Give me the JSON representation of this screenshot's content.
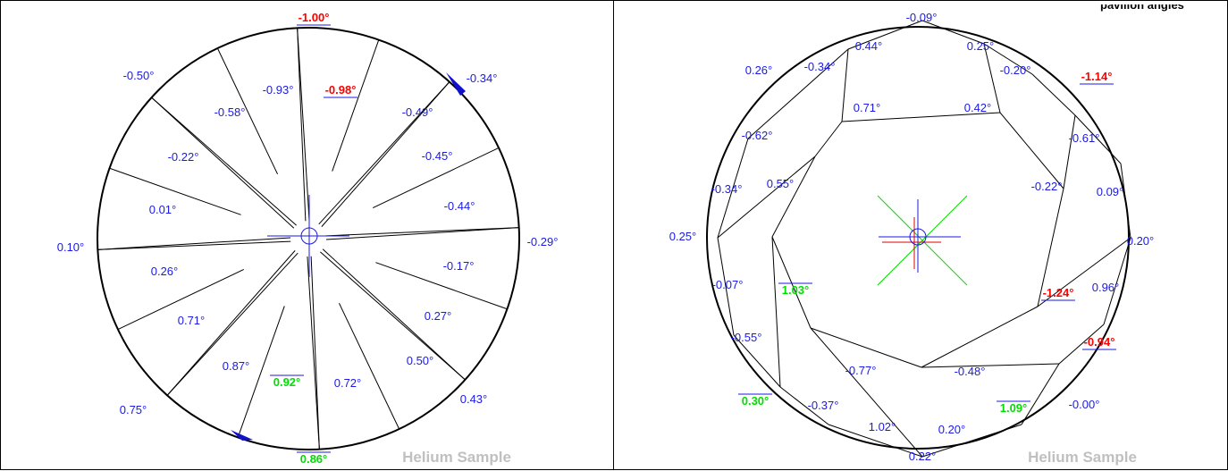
{
  "header": {
    "title": "pavilion angles"
  },
  "left_diagram": {
    "watermark": "Helium Sample",
    "colors": {
      "normal": "#1a1ae6",
      "high": "#ff0000",
      "low": "#00dd00",
      "marker_fill": "#1111cc"
    },
    "labels": [
      {
        "text": "-1.00°",
        "status": "high"
      },
      {
        "text": "-0.50°",
        "status": "normal"
      },
      {
        "text": "-0.93°",
        "status": "normal"
      },
      {
        "text": "-0.98°",
        "status": "high"
      },
      {
        "text": "-0.34°",
        "status": "normal"
      },
      {
        "text": "-0.58°",
        "status": "normal"
      },
      {
        "text": "-0.49°",
        "status": "normal"
      },
      {
        "text": "-0.22°",
        "status": "normal"
      },
      {
        "text": "-0.45°",
        "status": "normal"
      },
      {
        "text": "0.01°",
        "status": "normal"
      },
      {
        "text": "-0.44°",
        "status": "normal"
      },
      {
        "text": "0.10°",
        "status": "normal"
      },
      {
        "text": "-0.29°",
        "status": "normal"
      },
      {
        "text": "0.26°",
        "status": "normal"
      },
      {
        "text": "-0.17°",
        "status": "normal"
      },
      {
        "text": "0.71°",
        "status": "normal"
      },
      {
        "text": "0.27°",
        "status": "normal"
      },
      {
        "text": "0.87°",
        "status": "normal"
      },
      {
        "text": "0.92°",
        "status": "low"
      },
      {
        "text": "0.72°",
        "status": "normal"
      },
      {
        "text": "0.50°",
        "status": "normal"
      },
      {
        "text": "0.75°",
        "status": "normal"
      },
      {
        "text": "0.43°",
        "status": "normal"
      },
      {
        "text": "0.86°",
        "status": "low"
      }
    ]
  },
  "right_diagram": {
    "watermark": "Helium Sample",
    "labels": [
      {
        "text": "-0.09°",
        "status": "normal"
      },
      {
        "text": "0.44°",
        "status": "normal"
      },
      {
        "text": "0.25°",
        "status": "normal"
      },
      {
        "text": "0.26°",
        "status": "normal"
      },
      {
        "text": "-0.34°",
        "status": "normal"
      },
      {
        "text": "-0.20°",
        "status": "normal"
      },
      {
        "text": "-1.14°",
        "status": "high"
      },
      {
        "text": "0.71°",
        "status": "normal"
      },
      {
        "text": "0.42°",
        "status": "normal"
      },
      {
        "text": "-0.62°",
        "status": "normal"
      },
      {
        "text": "-0.61°",
        "status": "normal"
      },
      {
        "text": "0.55°",
        "status": "normal"
      },
      {
        "text": "-0.22°",
        "status": "normal"
      },
      {
        "text": "-0.34°",
        "status": "normal"
      },
      {
        "text": "0.09°",
        "status": "normal"
      },
      {
        "text": "0.25°",
        "status": "normal"
      },
      {
        "text": "0.20°",
        "status": "normal"
      },
      {
        "text": "-0.07°",
        "status": "normal"
      },
      {
        "text": "1.03°",
        "status": "low"
      },
      {
        "text": "-1.24°",
        "status": "high"
      },
      {
        "text": "0.96°",
        "status": "normal"
      },
      {
        "text": "-0.55°",
        "status": "normal"
      },
      {
        "text": "-0.94°",
        "status": "high"
      },
      {
        "text": "-0.77°",
        "status": "normal"
      },
      {
        "text": "-0.48°",
        "status": "normal"
      },
      {
        "text": "0.30°",
        "status": "low"
      },
      {
        "text": "-0.37°",
        "status": "normal"
      },
      {
        "text": "1.09°",
        "status": "low"
      },
      {
        "text": "-0.00°",
        "status": "normal"
      },
      {
        "text": "1.02°",
        "status": "normal"
      },
      {
        "text": "0.20°",
        "status": "normal"
      },
      {
        "text": "0.22°",
        "status": "normal"
      }
    ]
  }
}
